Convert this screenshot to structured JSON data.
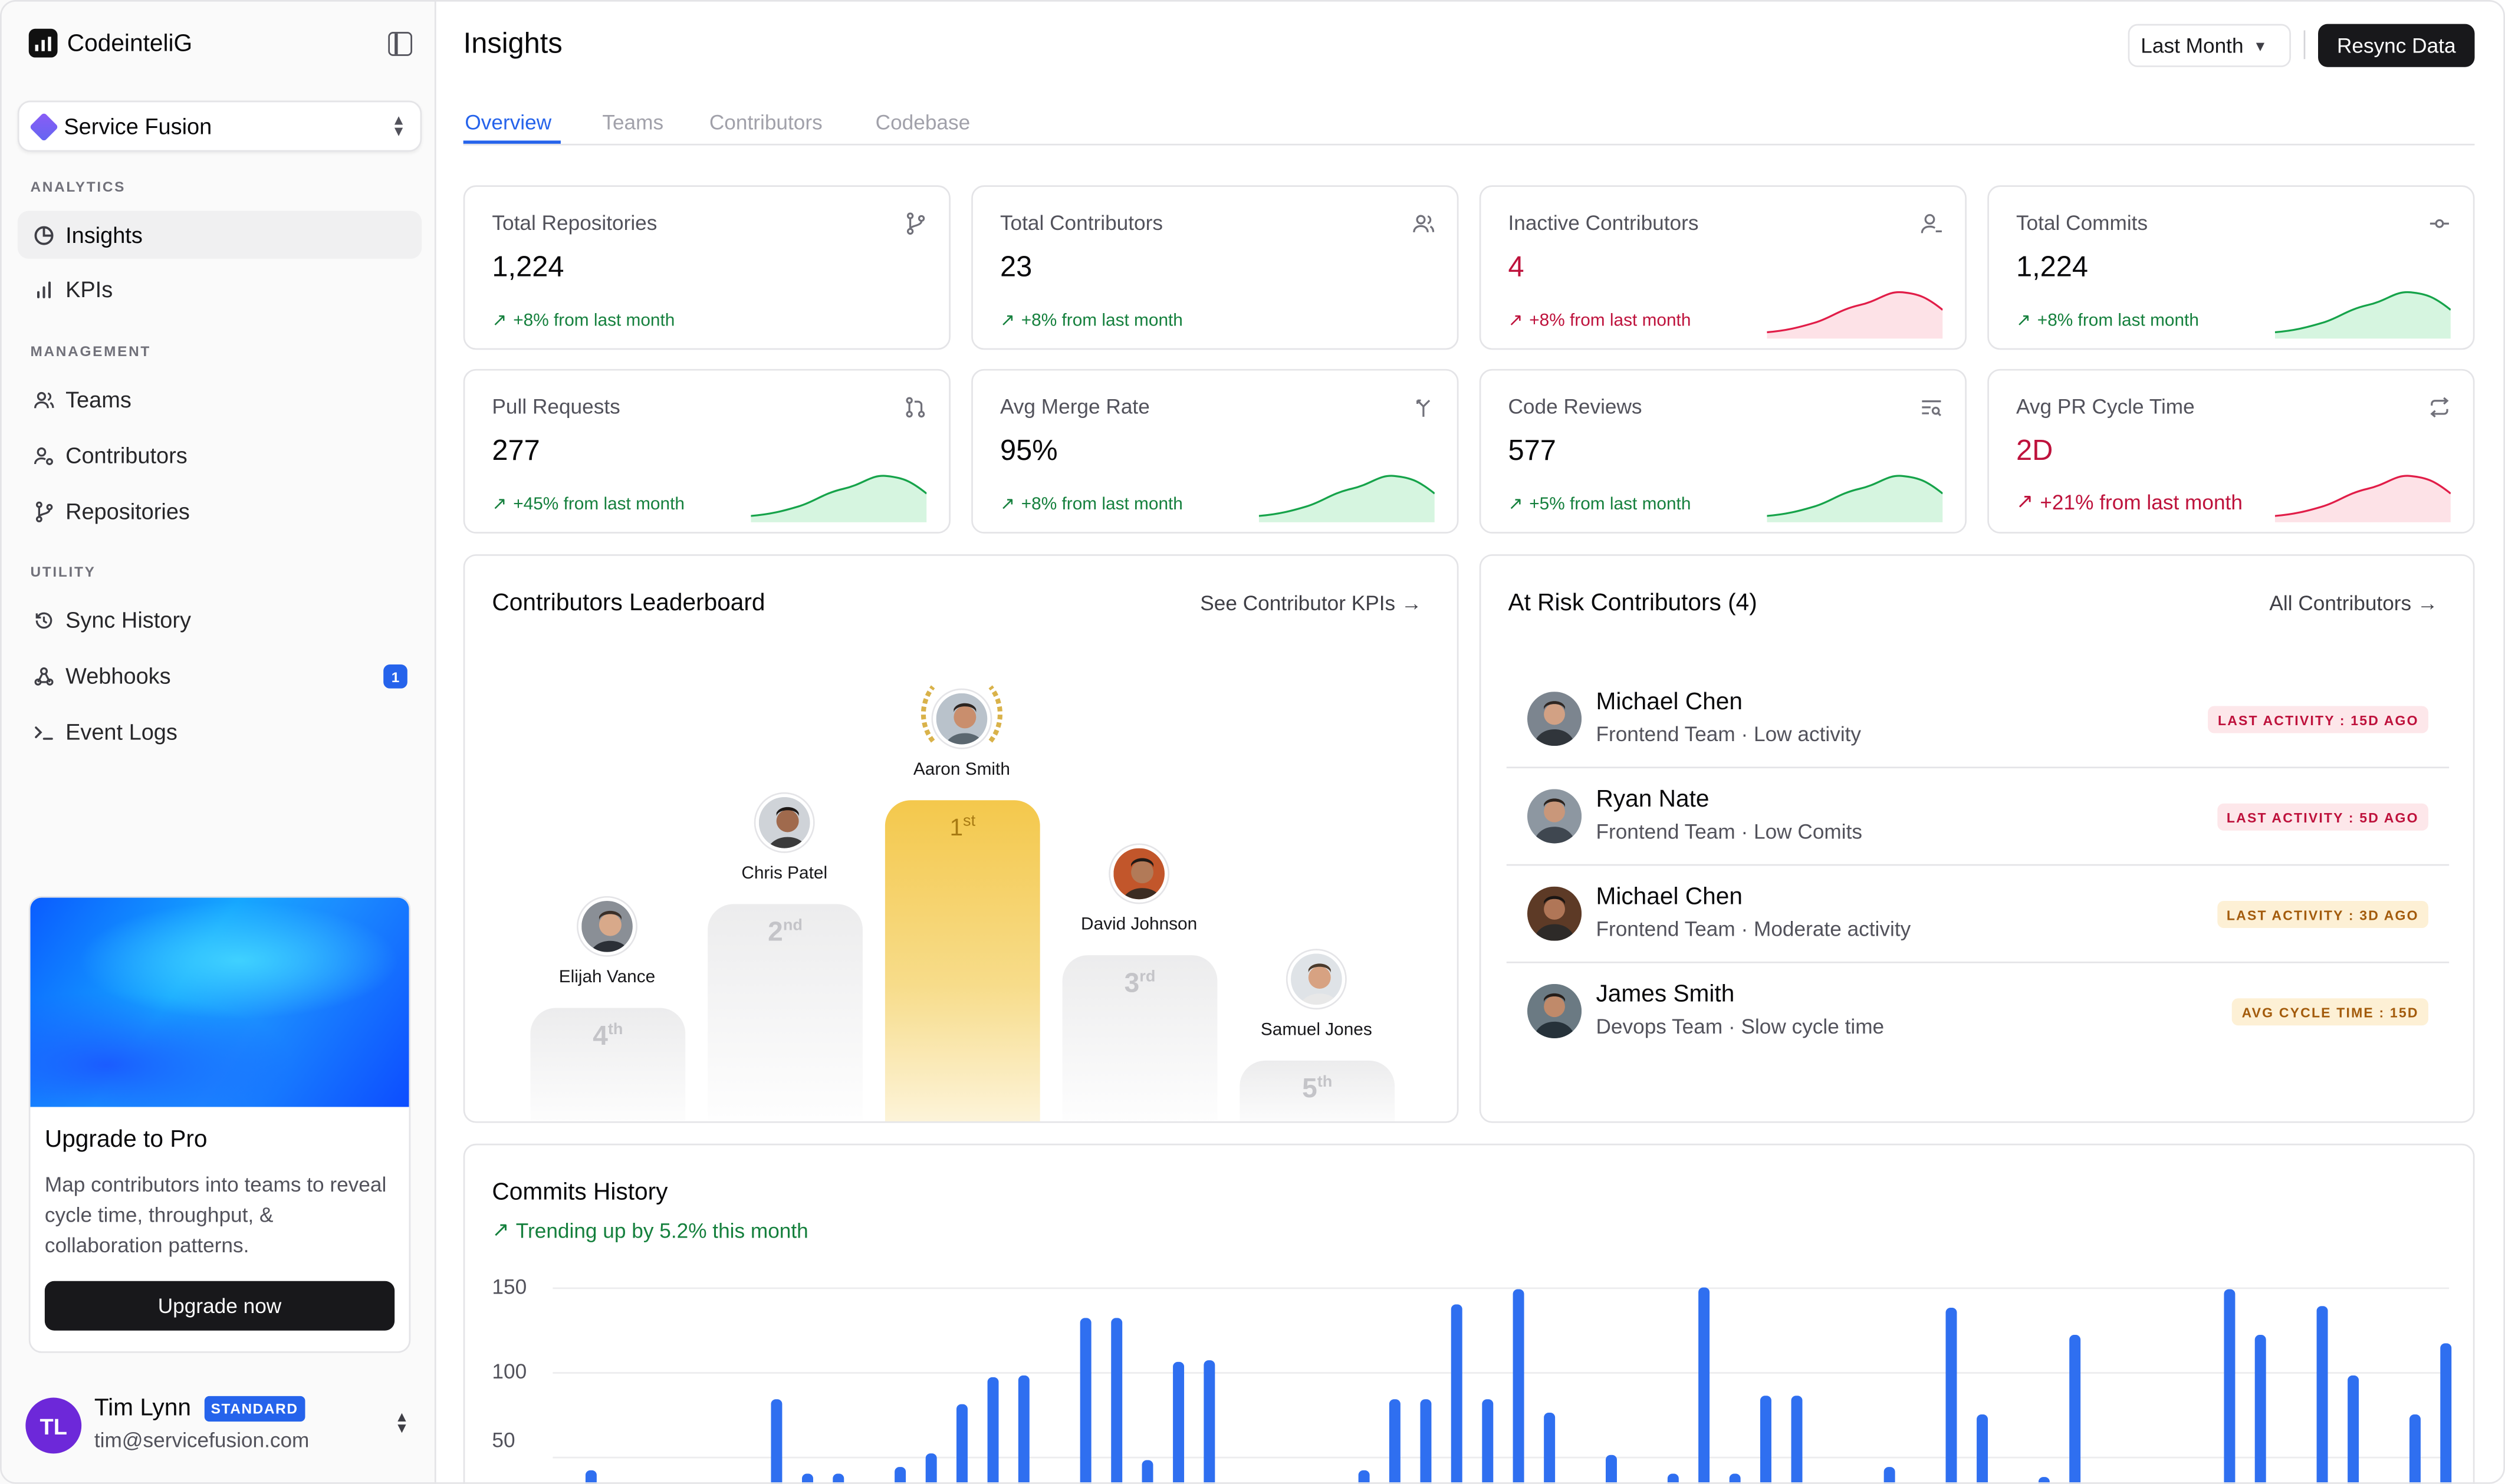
{
  "app": {
    "brand": "CodeinteliG"
  },
  "org_selector": {
    "value": "Service Fusion"
  },
  "sidebar": {
    "sections": [
      {
        "label": "ANALYTICS",
        "items": [
          {
            "label": "Insights",
            "icon": "pie-chart-icon",
            "active": true
          },
          {
            "label": "KPIs",
            "icon": "bar-chart-icon"
          }
        ]
      },
      {
        "label": "MANAGEMENT",
        "items": [
          {
            "label": "Teams",
            "icon": "users-icon"
          },
          {
            "label": "Contributors",
            "icon": "user-cog-icon"
          },
          {
            "label": "Repositories",
            "icon": "git-branch-icon"
          }
        ]
      },
      {
        "label": "UTILITY",
        "items": [
          {
            "label": "Sync History",
            "icon": "history-icon"
          },
          {
            "label": "Webhooks",
            "icon": "webhook-icon",
            "badge": "1"
          },
          {
            "label": "Event Logs",
            "icon": "terminal-icon"
          }
        ]
      }
    ]
  },
  "promo": {
    "title": "Upgrade to Pro",
    "text": "Map contributors into teams to reveal cycle time, throughput, & collaboration patterns.",
    "button": "Upgrade now"
  },
  "user": {
    "initials": "TL",
    "name": "Tim Lynn",
    "plan": "STANDARD",
    "email": "tim@servicefusion.com"
  },
  "header": {
    "title": "Insights",
    "period": "Last Month",
    "resync": "Resync Data"
  },
  "tabs": [
    "Overview",
    "Teams",
    "Contributors",
    "Codebase"
  ],
  "stats": [
    {
      "title": "Total Repositories",
      "value": "1,224",
      "delta": "+8% from last month",
      "trend": "up",
      "icon": "git-branch-icon"
    },
    {
      "title": "Total Contributors",
      "value": "23",
      "delta": "+8% from last month",
      "trend": "up",
      "icon": "users-icon"
    },
    {
      "title": "Inactive Contributors",
      "value": "4",
      "delta": "+8% from last month",
      "trend": "bad",
      "icon": "user-minus-icon"
    },
    {
      "title": "Total Commits",
      "value": "1,224",
      "delta": "+8% from last month",
      "trend": "up",
      "icon": "git-commit-icon"
    },
    {
      "title": "Pull Requests",
      "value": "277",
      "delta": "+45% from last month",
      "trend": "up",
      "icon": "git-pull-request-icon"
    },
    {
      "title": "Avg Merge Rate",
      "value": "95%",
      "delta": "+8% from last month",
      "trend": "up",
      "icon": "git-merge-icon"
    },
    {
      "title": "Code Reviews",
      "value": "577",
      "delta": "+5% from last month",
      "trend": "up",
      "icon": "review-list-icon"
    },
    {
      "title": "Avg PR Cycle Time",
      "value": "2D",
      "delta": "+21% from last month",
      "trend": "bad",
      "icon": "repeat-icon"
    }
  ],
  "leaderboard": {
    "title": "Contributors Leaderboard",
    "link": "See Contributor KPIs",
    "entries": [
      {
        "name": "Elijah Vance",
        "rank": "4",
        "suffix": "th"
      },
      {
        "name": "Chris Patel",
        "rank": "2",
        "suffix": "nd"
      },
      {
        "name": "Aaron Smith",
        "rank": "1",
        "suffix": "st"
      },
      {
        "name": "David Johnson",
        "rank": "3",
        "suffix": "rd"
      },
      {
        "name": "Samuel Jones",
        "rank": "5",
        "suffix": "th"
      }
    ]
  },
  "at_risk": {
    "title": "At Risk Contributors (4)",
    "link": "All Contributors",
    "rows": [
      {
        "name": "Michael Chen",
        "meta": "Frontend Team · Low activity",
        "badge": "LAST ACTIVITY : 15D AGO",
        "level": "red"
      },
      {
        "name": "Ryan Nate",
        "meta": "Frontend Team · Low Comits",
        "badge": "LAST ACTIVITY : 5D AGO",
        "level": "red"
      },
      {
        "name": "Michael Chen",
        "meta": "Frontend Team · Moderate activity",
        "badge": "LAST ACTIVITY : 3D AGO",
        "level": "amber"
      },
      {
        "name": "James Smith",
        "meta": "Devops Team · Slow cycle time",
        "badge": "AVG CYCLE TIME : 15D",
        "level": "amber"
      }
    ]
  },
  "commits": {
    "title": "Commits History",
    "subtitle": "Trending up by 5.2% this month"
  },
  "colors": {
    "accent": "#2563eb",
    "positive": "#15803d",
    "negative": "#be123c",
    "bar": "#2f6ff0"
  },
  "chart_data": {
    "type": "bar",
    "title": "Commits History",
    "ytick_labels": [
      "150",
      "100",
      "50"
    ],
    "values": [
      42,
      0,
      0,
      0,
      0,
      0,
      84,
      40,
      40,
      0,
      44,
      52,
      81,
      97,
      98,
      0,
      132,
      132,
      48,
      106,
      107,
      0,
      0,
      0,
      0,
      42,
      84,
      84,
      140,
      84,
      149,
      76,
      0,
      51,
      30,
      40,
      150,
      40,
      86,
      86,
      0,
      0,
      44,
      0,
      138,
      75,
      0,
      38,
      122,
      0,
      0,
      0,
      0,
      149,
      122,
      0,
      139,
      98,
      0,
      75,
      117,
      0,
      131,
      0,
      0,
      0,
      0,
      0,
      0,
      84,
      0,
      0,
      131
    ],
    "ylim": [
      0,
      150
    ]
  }
}
